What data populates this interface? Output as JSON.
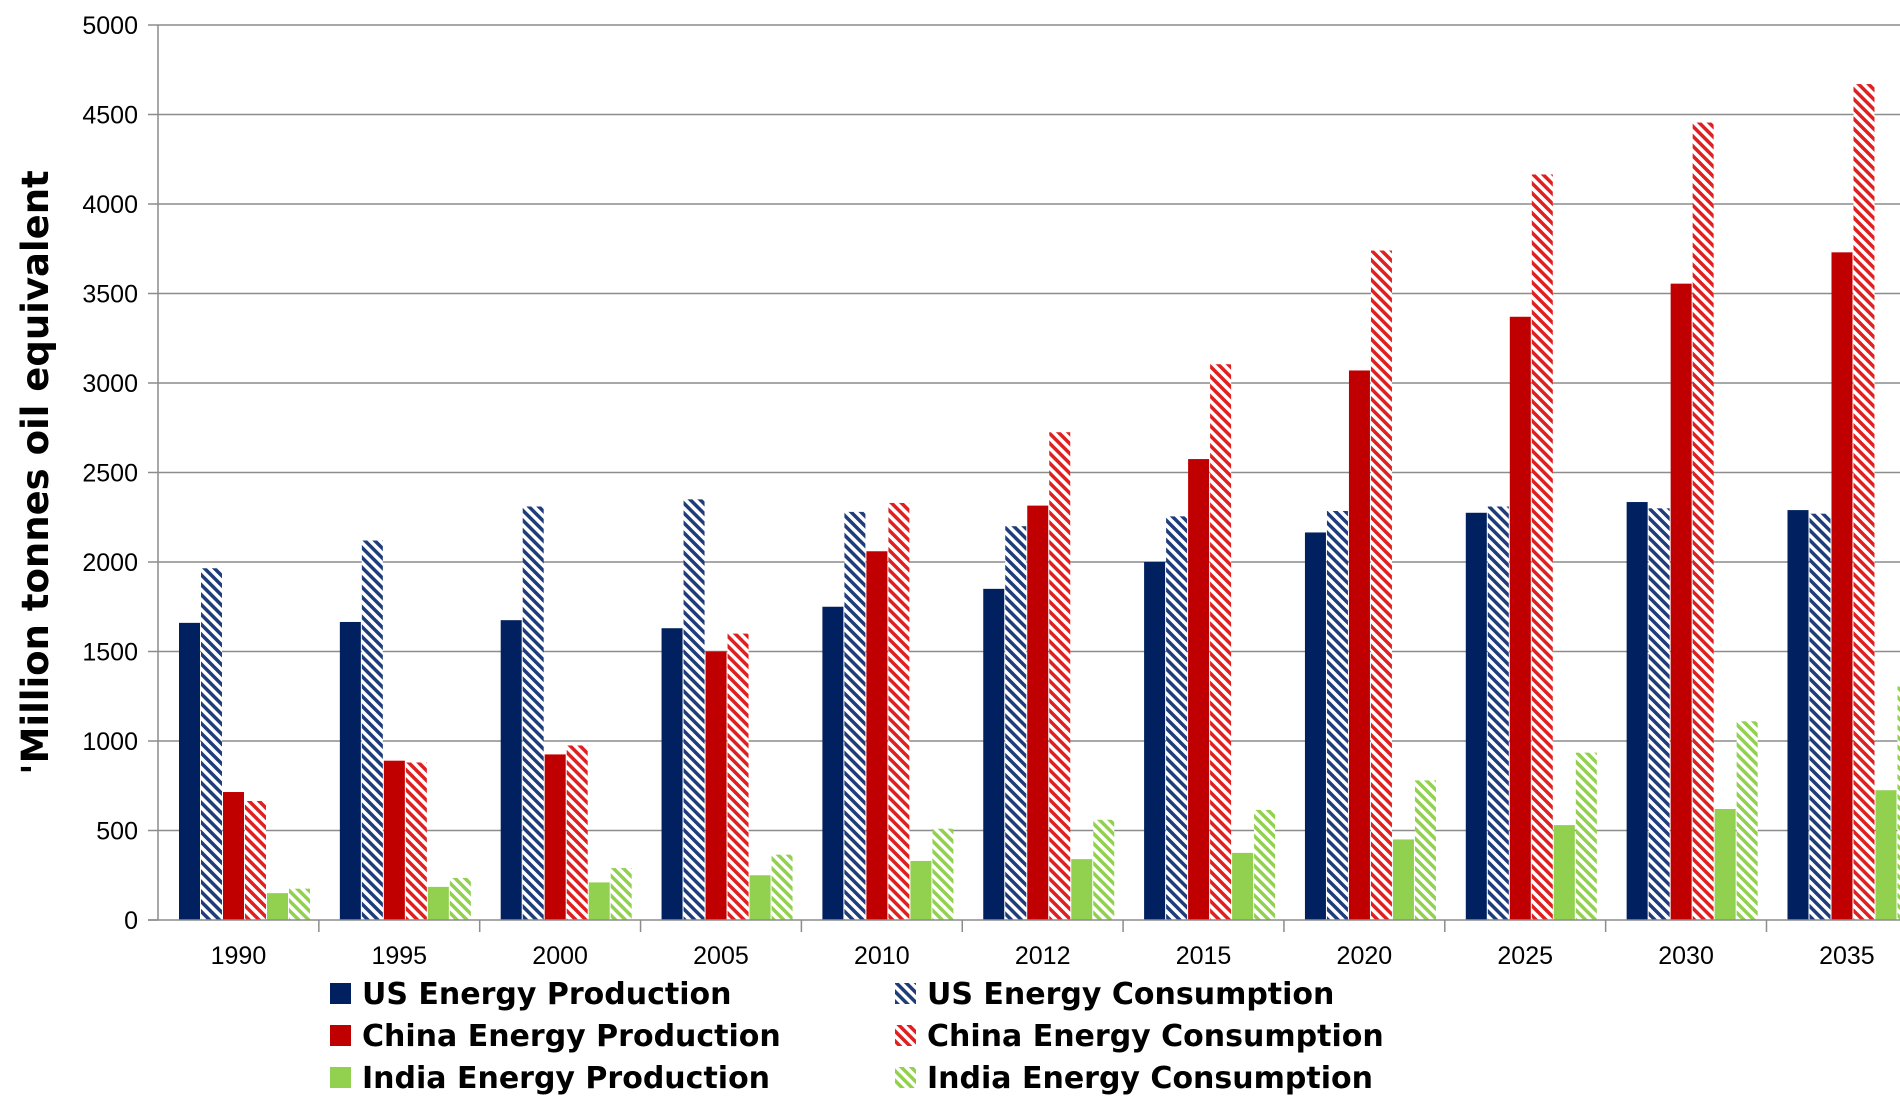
{
  "chart_data": {
    "type": "bar",
    "title": "",
    "xlabel": "",
    "ylabel": "'Million tonnes oil equivalent",
    "ylim": [
      0,
      5000
    ],
    "yticks": [
      0,
      500,
      1000,
      1500,
      2000,
      2500,
      3000,
      3500,
      4000,
      4500,
      5000
    ],
    "grid": true,
    "legend_position": "bottom",
    "categories": [
      "1990",
      "1995",
      "2000",
      "2005",
      "2010",
      "2012",
      "2015",
      "2020",
      "2025",
      "2030",
      "2035"
    ],
    "series": [
      {
        "name": "US Energy Production",
        "color": "#002060",
        "pattern": "solid",
        "values": [
          1660,
          1665,
          1675,
          1630,
          1750,
          1850,
          2000,
          2165,
          2275,
          2335,
          2290
        ]
      },
      {
        "name": "US Energy Consumption",
        "color": "#1f3d7a",
        "pattern": "hatched",
        "values": [
          1965,
          2120,
          2310,
          2350,
          2280,
          2200,
          2255,
          2285,
          2310,
          2300,
          2270
        ]
      },
      {
        "name": "China Energy Production",
        "color": "#c00000",
        "pattern": "solid",
        "values": [
          715,
          890,
          925,
          1500,
          2060,
          2315,
          2575,
          3070,
          3370,
          3555,
          3730
        ]
      },
      {
        "name": "China Energy Consumption",
        "color": "#e02020",
        "pattern": "hatched",
        "values": [
          665,
          880,
          975,
          1600,
          2330,
          2725,
          3105,
          3740,
          4165,
          4455,
          4670
        ]
      },
      {
        "name": "India Energy Production",
        "color": "#92d050",
        "pattern": "solid",
        "values": [
          150,
          185,
          210,
          250,
          330,
          340,
          375,
          450,
          530,
          620,
          725
        ]
      },
      {
        "name": "India Energy Consumption",
        "color": "#92d050",
        "pattern": "hatched",
        "values": [
          175,
          235,
          290,
          365,
          510,
          560,
          615,
          780,
          935,
          1110,
          1305
        ]
      }
    ]
  }
}
